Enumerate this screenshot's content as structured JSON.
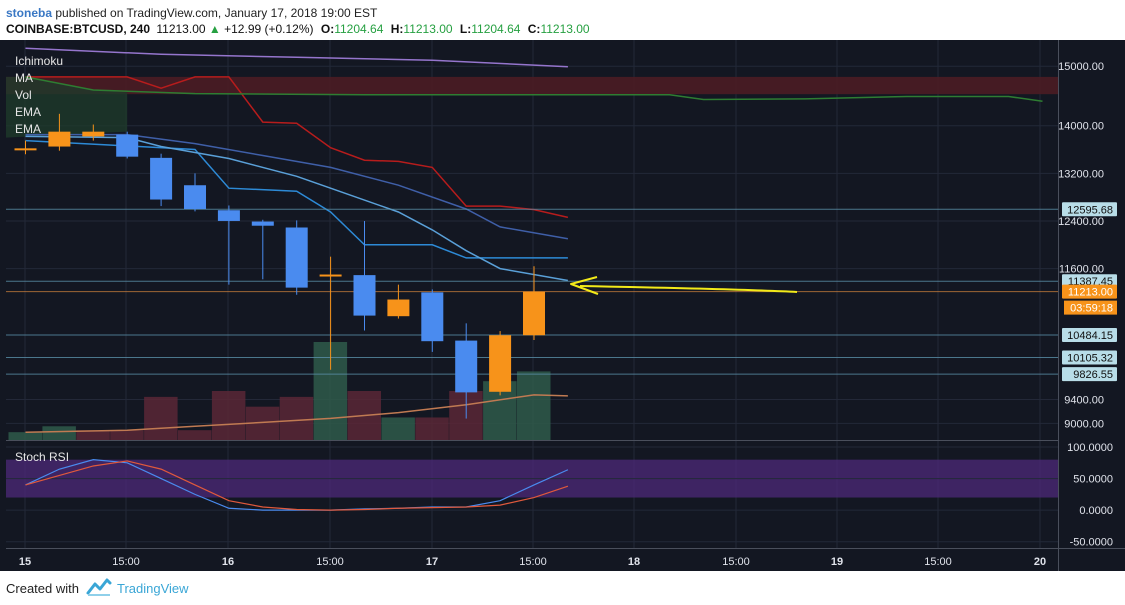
{
  "header": {
    "author": "stoneba",
    "published_text": " published on TradingView.com, January 17, 2018 19:00 EST",
    "symbol": "COINBASE:BTCUSD, 240",
    "last_price": "11213.00",
    "change_arrow": "▲",
    "change": "+12.99 (+0.12%)",
    "open_label": "O:",
    "open": "11204.64",
    "high_label": "H:",
    "high": "11213.00",
    "low_label": "L:",
    "low": "11204.64",
    "close_label": "C:",
    "close": "11213.00"
  },
  "legend": [
    "Ichimoku",
    "MA",
    "Vol",
    "EMA",
    "EMA"
  ],
  "stoch_label": "Stoch RSI",
  "footer": {
    "created_with": "Created with",
    "brand": "TradingView"
  },
  "colors": {
    "background": "#131722",
    "up": "#f7931a",
    "down": "#4a8bef",
    "cloud": "#4b1c24",
    "stoch_band": "#4d2a7a",
    "label_bg": "#b8dde8",
    "price_tag": "#f7931a"
  },
  "chart_data": {
    "type": "candlestick",
    "y_range": [
      8720,
      15440
    ],
    "price_axis_ticks": [
      15000,
      14000,
      13200,
      12400,
      11600,
      9400,
      9000
    ],
    "price_axis_tick_labels": [
      "15000.00",
      "14000.00",
      "13200.00",
      "12400.00",
      "11600.00",
      "9400.00",
      "9000.00"
    ],
    "x_tick_labels": [
      "15",
      "15:00",
      "16",
      "15:00",
      "17",
      "15:00",
      "18",
      "15:00",
      "19",
      "15:00",
      "20"
    ],
    "candles": [
      {
        "o": 13600,
        "h": 13750,
        "l": 13520,
        "c": 13620
      },
      {
        "o": 13650,
        "h": 14200,
        "l": 13580,
        "c": 13900
      },
      {
        "o": 13820,
        "h": 14020,
        "l": 13750,
        "c": 13900
      },
      {
        "o": 13850,
        "h": 13900,
        "l": 13450,
        "c": 13480
      },
      {
        "o": 13460,
        "h": 13530,
        "l": 12650,
        "c": 12760
      },
      {
        "o": 13000,
        "h": 13200,
        "l": 12560,
        "c": 12600
      },
      {
        "o": 12580,
        "h": 12660,
        "l": 11330,
        "c": 12400
      },
      {
        "o": 12390,
        "h": 12420,
        "l": 11420,
        "c": 12320
      },
      {
        "o": 12290,
        "h": 12410,
        "l": 11160,
        "c": 11280
      },
      {
        "o": 11500,
        "h": 11800,
        "l": 9900,
        "c": 11500
      },
      {
        "o": 11490,
        "h": 12400,
        "l": 10560,
        "c": 10810
      },
      {
        "o": 10800,
        "h": 11330,
        "l": 10760,
        "c": 11080
      },
      {
        "o": 11200,
        "h": 11250,
        "l": 10200,
        "c": 10380
      },
      {
        "o": 10390,
        "h": 10680,
        "l": 9080,
        "c": 9520
      },
      {
        "o": 9530,
        "h": 10550,
        "l": 9470,
        "c": 10480
      },
      {
        "o": 10480,
        "h": 11640,
        "l": 10400,
        "c": 11213
      }
    ],
    "volume": [
      {
        "v": 0.08,
        "up": true
      },
      {
        "v": 0.14,
        "up": true
      },
      {
        "v": 0.1,
        "up": false
      },
      {
        "v": 0.1,
        "up": false
      },
      {
        "v": 0.44,
        "up": false
      },
      {
        "v": 0.1,
        "up": false
      },
      {
        "v": 0.5,
        "up": false
      },
      {
        "v": 0.34,
        "up": false
      },
      {
        "v": 0.44,
        "up": false
      },
      {
        "v": 1.0,
        "up": true
      },
      {
        "v": 0.5,
        "up": false
      },
      {
        "v": 0.23,
        "up": true
      },
      {
        "v": 0.23,
        "up": false
      },
      {
        "v": 0.5,
        "up": false
      },
      {
        "v": 0.6,
        "up": true
      },
      {
        "v": 0.7,
        "up": true
      }
    ],
    "ichimoku_cloud": {
      "top": 14820,
      "bottom": 14530
    },
    "lines": [
      {
        "name": "purple",
        "color": "#9575cd",
        "points": [
          [
            0,
            15300
          ],
          [
            4,
            15200
          ],
          [
            8,
            15150
          ],
          [
            12,
            15100
          ],
          [
            16,
            14990
          ]
        ]
      },
      {
        "name": "red",
        "color": "#b71c1c",
        "points": [
          [
            0,
            14820
          ],
          [
            3,
            14820
          ],
          [
            4,
            14630
          ],
          [
            5,
            14820
          ],
          [
            6,
            14820
          ],
          [
            7,
            14060
          ],
          [
            8,
            14040
          ],
          [
            9,
            13630
          ],
          [
            10,
            13420
          ],
          [
            11,
            13400
          ],
          [
            12,
            13300
          ],
          [
            13,
            12650
          ],
          [
            14,
            12650
          ],
          [
            15,
            12590
          ],
          [
            16,
            12460
          ]
        ]
      },
      {
        "name": "green",
        "color": "#2e7d32",
        "points": [
          [
            0,
            14820
          ],
          [
            2,
            14600
          ],
          [
            5,
            14540
          ],
          [
            10,
            14520
          ],
          [
            19,
            14520
          ],
          [
            20,
            14440
          ],
          [
            23,
            14450
          ],
          [
            26,
            14490
          ],
          [
            29,
            14490
          ],
          [
            30,
            14410
          ]
        ]
      },
      {
        "name": "darkblue",
        "color": "#3f5fa8",
        "points": [
          [
            0,
            13850
          ],
          [
            3,
            13850
          ],
          [
            5,
            13700
          ],
          [
            7,
            13500
          ],
          [
            9,
            13300
          ],
          [
            11,
            13000
          ],
          [
            13,
            12600
          ],
          [
            14,
            12300
          ],
          [
            16,
            12100
          ]
        ]
      },
      {
        "name": "tenkan",
        "color": "#2d8ad6",
        "points": [
          [
            0,
            13750
          ],
          [
            5,
            13600
          ],
          [
            6,
            12950
          ],
          [
            8,
            12900
          ],
          [
            9,
            12550
          ],
          [
            10,
            12000
          ],
          [
            12,
            12000
          ],
          [
            13,
            11780
          ],
          [
            14,
            11780
          ],
          [
            16,
            11780
          ]
        ]
      },
      {
        "name": "kijun",
        "color": "#5aa0d8",
        "points": [
          [
            0,
            13820
          ],
          [
            3,
            13800
          ],
          [
            4,
            13650
          ],
          [
            6,
            13450
          ],
          [
            8,
            13150
          ],
          [
            9,
            12950
          ],
          [
            11,
            12550
          ],
          [
            12,
            12250
          ],
          [
            13,
            11900
          ],
          [
            14,
            11600
          ],
          [
            16,
            11400
          ]
        ]
      },
      {
        "name": "vol_ma",
        "color": "#c07a52",
        "scale": "volume",
        "points": [
          [
            0,
            0.08
          ],
          [
            3,
            0.1
          ],
          [
            5,
            0.14
          ],
          [
            7,
            0.18
          ],
          [
            9,
            0.22
          ],
          [
            11,
            0.28
          ],
          [
            13,
            0.36
          ],
          [
            15,
            0.46
          ],
          [
            16,
            0.45
          ]
        ]
      }
    ],
    "price_labels": [
      {
        "value": 12595.68,
        "text": "12595.68"
      },
      {
        "value": 11387.45,
        "text": "11387.45"
      },
      {
        "value": 11213.0,
        "text": "11213.00",
        "current": true
      },
      {
        "value": 10484.15,
        "text": "10484.15"
      },
      {
        "value": 10105.32,
        "text": "10105.32"
      },
      {
        "value": 9826.55,
        "text": "9826.55"
      }
    ],
    "countdown": "03:59:18",
    "stoch_rsi": {
      "y_range": [
        -60,
        108
      ],
      "ticks": [
        100,
        50,
        0,
        -50
      ],
      "tick_labels": [
        "100.0000",
        "50.0000",
        "0.0000",
        "-50.0000"
      ],
      "band": [
        20,
        80
      ],
      "k": [
        [
          0,
          40
        ],
        [
          1,
          65
        ],
        [
          2,
          80
        ],
        [
          3,
          75
        ],
        [
          4,
          50
        ],
        [
          5,
          25
        ],
        [
          6,
          3
        ],
        [
          7,
          0
        ],
        [
          8,
          0
        ],
        [
          9,
          0
        ],
        [
          10,
          2
        ],
        [
          11,
          3
        ],
        [
          12,
          5
        ],
        [
          13,
          5
        ],
        [
          14,
          15
        ],
        [
          15,
          40
        ],
        [
          16,
          64
        ]
      ],
      "d": [
        [
          0,
          40
        ],
        [
          1,
          55
        ],
        [
          2,
          70
        ],
        [
          3,
          78
        ],
        [
          4,
          65
        ],
        [
          5,
          40
        ],
        [
          6,
          15
        ],
        [
          7,
          5
        ],
        [
          8,
          1
        ],
        [
          9,
          0
        ],
        [
          10,
          1
        ],
        [
          11,
          3
        ],
        [
          12,
          4
        ],
        [
          13,
          5
        ],
        [
          14,
          8
        ],
        [
          15,
          20
        ],
        [
          16,
          38
        ]
      ]
    }
  }
}
